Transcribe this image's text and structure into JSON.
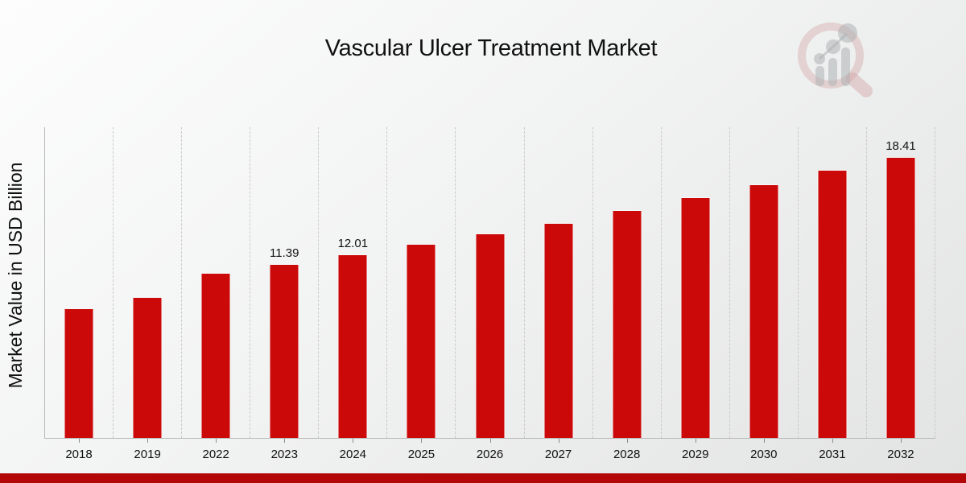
{
  "header": {
    "title": "Vascular Ulcer Treatment Market",
    "logo_icon": "magnifier-bar-chart-watermark"
  },
  "colors": {
    "bar": "#cb0909",
    "bar_edge": "#f7f7f7",
    "bottom_band": "#b30606",
    "grid": "#c9caca",
    "axis": "#b7b8b8",
    "text": "#111111",
    "background_top": "#fdfdfd",
    "background_bottom": "#e2e3e3",
    "logo_pink": "rgba(205,150,150,0.38)",
    "logo_gray": "rgba(168,171,173,0.55)"
  },
  "chart_data": {
    "type": "bar",
    "title": "Vascular Ulcer Treatment Market",
    "xlabel": "",
    "ylabel": "Market Value in USD Billion",
    "categories": [
      "2018",
      "2019",
      "2022",
      "2023",
      "2024",
      "2025",
      "2026",
      "2027",
      "2028",
      "2029",
      "2030",
      "2031",
      "2032"
    ],
    "values": [
      8.5,
      9.25,
      10.8,
      11.39,
      12.01,
      12.69,
      13.39,
      14.08,
      14.93,
      15.76,
      16.6,
      17.53,
      18.41
    ],
    "data_labels": [
      "",
      "",
      "",
      "11.39",
      "12.01",
      "",
      "",
      "",
      "",
      "",
      "",
      "",
      "18.41"
    ],
    "ylim": [
      0,
      20.4
    ],
    "grid": "vertical-dashed",
    "legend": "none",
    "bar_color": "#cb0909"
  }
}
